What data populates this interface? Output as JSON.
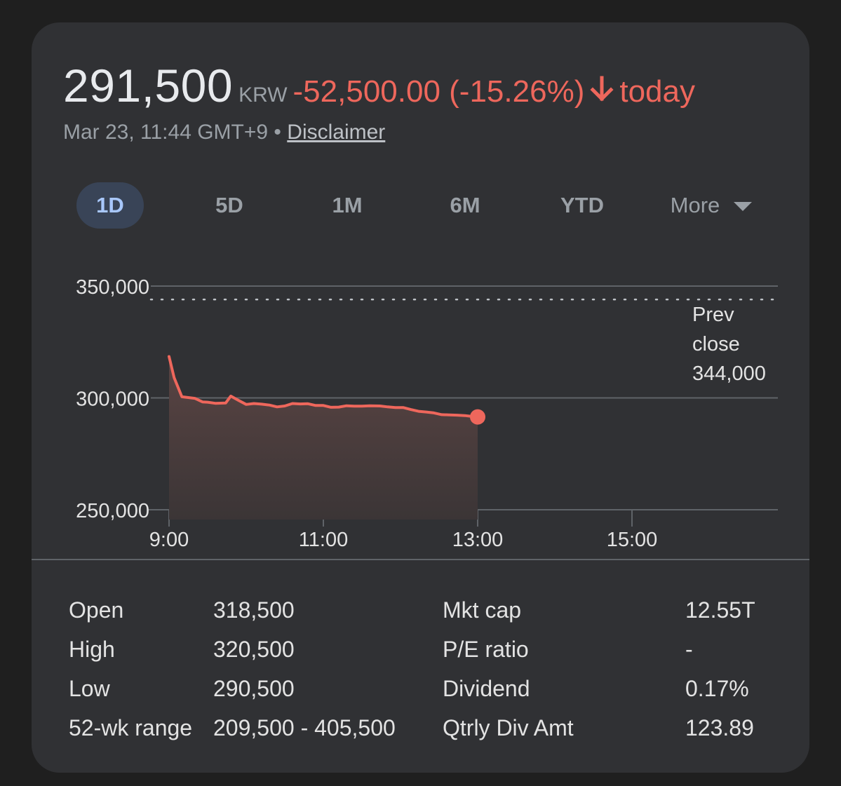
{
  "quote": {
    "price": "291,500",
    "currency": "KRW",
    "change": "-52,500.00 (-15.26%)",
    "period": "today",
    "timestamp": "Mar 23, 11:44 GMT+9",
    "separator": "•",
    "disclaimer_label": "Disclaimer",
    "arrow_icon": "arrow-down-icon",
    "down_color": "#ee675c"
  },
  "tabs": [
    {
      "label": "1D",
      "active": true
    },
    {
      "label": "5D",
      "active": false
    },
    {
      "label": "1M",
      "active": false
    },
    {
      "label": "6M",
      "active": false
    },
    {
      "label": "YTD",
      "active": false
    },
    {
      "label": "More",
      "active": false,
      "icon": "caret-down-icon"
    }
  ],
  "chart_data": {
    "type": "area",
    "y_ticks": [
      "350,000",
      "300,000",
      "250,000"
    ],
    "y_tick_values": [
      350000,
      300000,
      250000
    ],
    "ylim": [
      250000,
      350000
    ],
    "x_ticks": [
      "9:00",
      "11:00",
      "13:00",
      "15:00"
    ],
    "x_tick_values": [
      0,
      120,
      240,
      360
    ],
    "xlim": [
      0,
      410
    ],
    "prev_close": {
      "label_line1": "Prev",
      "label_line2": "close",
      "value": "344,000",
      "y": 344000
    },
    "series": [
      {
        "color": "#ee675c",
        "x": [
          0,
          4,
          10,
          20,
          26,
          30,
          36,
          44,
          48,
          54,
          60,
          66,
          72,
          78,
          84,
          90,
          96,
          102,
          108,
          114,
          120,
          126,
          132,
          138,
          144,
          150,
          156,
          164,
          170,
          176,
          182,
          188,
          194,
          200,
          206,
          212,
          218,
          224,
          230,
          236,
          240
        ],
        "y": [
          318500,
          309000,
          300500,
          299800,
          298200,
          298100,
          297600,
          297700,
          300800,
          298900,
          297100,
          297500,
          297200,
          296800,
          296000,
          296400,
          297500,
          297300,
          297400,
          296600,
          296600,
          295800,
          295900,
          296500,
          296300,
          296300,
          296500,
          296400,
          296000,
          295700,
          295700,
          294800,
          294000,
          293700,
          293300,
          292500,
          292400,
          292300,
          292100,
          291700,
          291500
        ]
      }
    ]
  },
  "stats": [
    {
      "label": "Open",
      "value": "318,500"
    },
    {
      "label": "High",
      "value": "320,500"
    },
    {
      "label": "Low",
      "value": "290,500"
    },
    {
      "label": "52-wk range",
      "value": "209,500 - 405,500"
    },
    {
      "label": "Mkt cap",
      "value": "12.55T"
    },
    {
      "label": "P/E ratio",
      "value": "-"
    },
    {
      "label": "Dividend",
      "value": "0.17%"
    },
    {
      "label": "Qtrly Div Amt",
      "value": "123.89"
    }
  ]
}
